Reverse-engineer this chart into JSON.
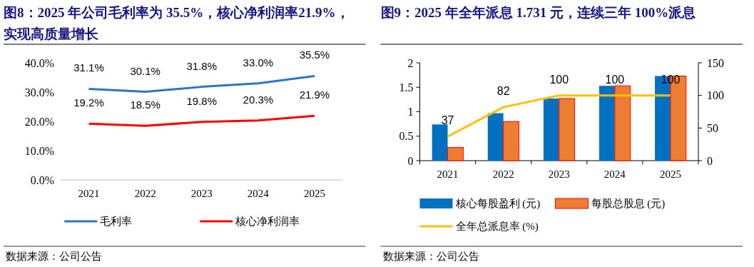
{
  "chart_data": [
    {
      "type": "line",
      "title": "图8：2025 年公司毛利率为 35.5%，核心净利润率21.9%，实现高质量增长",
      "categories": [
        "2021",
        "2022",
        "2023",
        "2024",
        "2025"
      ],
      "series": [
        {
          "name": "毛利率",
          "color": "#2e75c6",
          "values": [
            31.1,
            30.1,
            31.8,
            33.0,
            35.5
          ],
          "value_labels": [
            "31.1%",
            "30.1%",
            "31.8%",
            "33.0%",
            "35.5%"
          ]
        },
        {
          "name": "核心净利润率",
          "color": "#ff0000",
          "values": [
            19.2,
            18.5,
            19.8,
            20.3,
            21.9
          ],
          "value_labels": [
            "19.2%",
            "18.5%",
            "19.8%",
            "20.3%",
            "21.9%"
          ]
        }
      ],
      "ylim": [
        0,
        40
      ],
      "yticks": [
        {
          "value": 0,
          "label": "0.0%"
        },
        {
          "value": 10,
          "label": "10.0%"
        },
        {
          "value": 20,
          "label": "20.0%"
        },
        {
          "value": 30,
          "label": "30.0%"
        },
        {
          "value": 40,
          "label": "40.0%"
        }
      ],
      "legend": "bottom",
      "annotations": [
        "数据来源：公司公告"
      ]
    },
    {
      "type": "bar",
      "title": "图9：2025 年全年派息 1.731 元，连续三年 100%派息",
      "categories": [
        "2021",
        "2022",
        "2023",
        "2024",
        "2025"
      ],
      "series": [
        {
          "name": "核心每股盈利 (元)",
          "color": "#0070c0",
          "values": [
            0.74,
            0.97,
            1.27,
            1.53,
            1.73
          ]
        },
        {
          "name": "每股总股息 (元)",
          "color": "#ed7d31",
          "values": [
            0.27,
            0.8,
            1.27,
            1.53,
            1.73
          ]
        },
        {
          "name": "全年总派息率 (%)",
          "type": "line",
          "axis": "y2",
          "color": "#ffc000",
          "values": [
            37,
            82,
            100,
            100,
            100
          ],
          "value_labels": [
            "37",
            "82",
            "100",
            "100",
            "100"
          ]
        }
      ],
      "ylim": [
        0,
        2
      ],
      "yticks": [
        0,
        0.5,
        1,
        1.5,
        2
      ],
      "y2lim": [
        0,
        150
      ],
      "y2ticks": [
        0,
        50,
        100,
        150
      ],
      "legend": "bottom",
      "annotations": [
        "数据来源：公司公告"
      ]
    }
  ]
}
